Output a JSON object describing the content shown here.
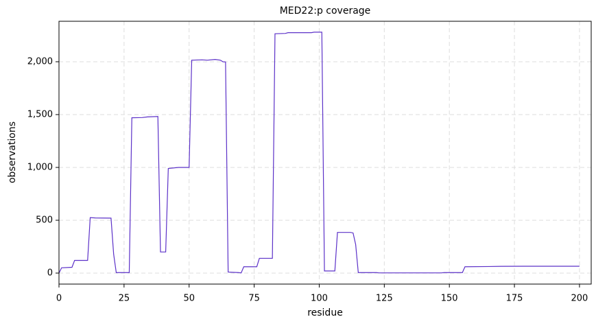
{
  "chart_data": {
    "type": "line",
    "title": "MED22:p coverage",
    "x_label": "residue",
    "y_label": "observations",
    "x": [
      0,
      1,
      5,
      6,
      11,
      12,
      14,
      20,
      21,
      22,
      27,
      28,
      32,
      34,
      38,
      39,
      41,
      42,
      44,
      46,
      50,
      51,
      55,
      57,
      60,
      62,
      63,
      64,
      65,
      69,
      70,
      71,
      76,
      77,
      82,
      83,
      87,
      88,
      97,
      98,
      101,
      102,
      106,
      107,
      112,
      113,
      114,
      115,
      122,
      123,
      147,
      148,
      155,
      156,
      165,
      170,
      180,
      200
    ],
    "series": [
      {
        "name": "coverage",
        "color": "#5b30c8",
        "values": [
          0,
          50,
          55,
          120,
          120,
          525,
          522,
          520,
          180,
          5,
          5,
          1470,
          1472,
          1478,
          1482,
          200,
          200,
          990,
          995,
          1000,
          1000,
          2015,
          2018,
          2015,
          2022,
          2015,
          2000,
          1998,
          10,
          5,
          2,
          60,
          60,
          140,
          140,
          2265,
          2268,
          2275,
          2275,
          2280,
          2280,
          20,
          20,
          385,
          385,
          380,
          270,
          5,
          5,
          2,
          2,
          5,
          5,
          60,
          62,
          64,
          65,
          65
        ]
      }
    ],
    "xlim": [
      0,
      204.5
    ],
    "ylim": [
      -104,
      2383
    ],
    "xticks": [
      0,
      25,
      50,
      75,
      100,
      125,
      150,
      175,
      200
    ],
    "yticks": [
      0,
      500,
      {
        "value": 1000,
        "label": "1,000"
      },
      {
        "value": 1500,
        "label": "1,500"
      },
      {
        "value": 2000,
        "label": "2,000"
      }
    ],
    "grid": true
  }
}
